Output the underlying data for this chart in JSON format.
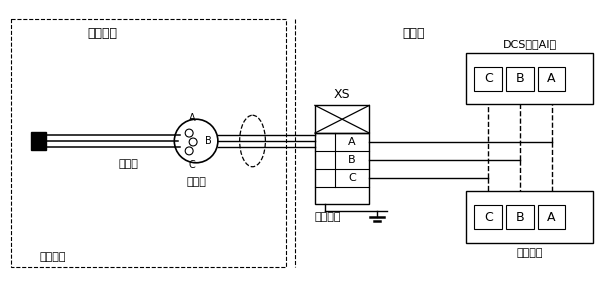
{
  "bg_color": "#ffffff",
  "labels": {
    "production_site": "生产现场",
    "control_room": "控制室",
    "rtd": "热电阻",
    "process_equip": "工艺设备",
    "junction_box": "接线盒",
    "terminal": "接线端子",
    "dcs_card": "DCS系统AI卡",
    "display": "显示仪表",
    "xs": "XS"
  },
  "fig_width": 6.11,
  "fig_height": 2.82,
  "dpi": 100
}
